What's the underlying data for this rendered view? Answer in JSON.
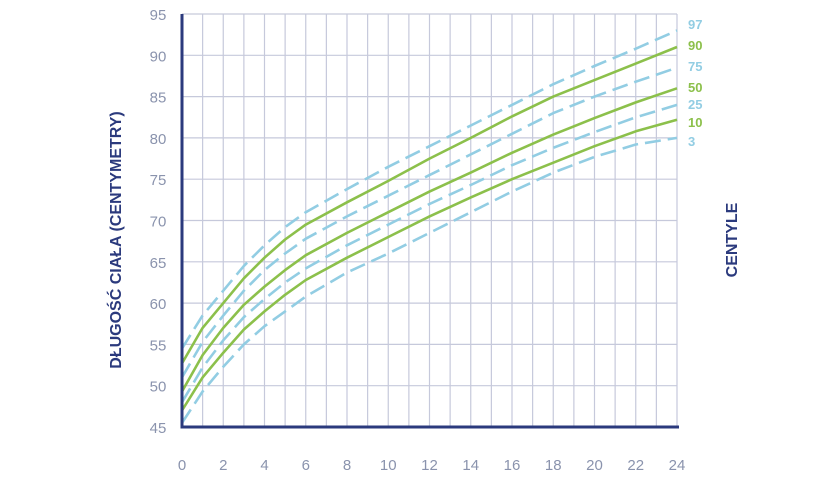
{
  "chart_data": {
    "type": "line",
    "title": "",
    "xlabel": "",
    "ylabel": "DŁUGOŚĆ CIAŁA (CENTYMETRY)",
    "right_label": "CENTYLE",
    "xlim": [
      0,
      24
    ],
    "ylim": [
      45,
      95
    ],
    "x_ticks": [
      0,
      2,
      4,
      6,
      8,
      10,
      12,
      14,
      16,
      18,
      20,
      22,
      24
    ],
    "y_ticks": [
      45,
      50,
      55,
      60,
      65,
      70,
      75,
      80,
      85,
      90,
      95
    ],
    "grid": true,
    "legend_position": "right",
    "colors": {
      "solid": "#8cc04b",
      "dashed": "#92cde3",
      "axis": "#2b3a7d",
      "grid": "#c6c9db"
    },
    "x": [
      0,
      1,
      2,
      3,
      4,
      5,
      6,
      8,
      10,
      12,
      14,
      16,
      18,
      20,
      22,
      24
    ],
    "series": [
      {
        "name": "97",
        "style": "dashed",
        "values": [
          54.5,
          58.5,
          61.5,
          64.5,
          67,
          69.2,
          71,
          73.8,
          76.5,
          79,
          81.5,
          84,
          86.5,
          88.7,
          90.8,
          93
        ]
      },
      {
        "name": "90",
        "style": "solid",
        "values": [
          52.7,
          57,
          60,
          63,
          65.5,
          67.7,
          69.5,
          72.2,
          74.8,
          77.5,
          80,
          82.6,
          85,
          87,
          89,
          91
        ]
      },
      {
        "name": "75",
        "style": "dashed",
        "values": [
          51,
          55.3,
          58.5,
          61.5,
          64,
          66,
          67.8,
          70.5,
          73,
          75.5,
          78,
          80.5,
          83,
          85,
          86.8,
          88.5
        ]
      },
      {
        "name": "50",
        "style": "solid",
        "values": [
          49.3,
          53.7,
          57,
          59.8,
          62,
          64,
          65.8,
          68.5,
          71,
          73.5,
          75.8,
          78.2,
          80.4,
          82.4,
          84.3,
          86
        ]
      },
      {
        "name": "25",
        "style": "dashed",
        "values": [
          48,
          52.2,
          55.5,
          58.3,
          60.5,
          62.5,
          64.2,
          67,
          69.5,
          72,
          74.3,
          76.7,
          78.8,
          80.7,
          82.5,
          84
        ]
      },
      {
        "name": "10",
        "style": "solid",
        "values": [
          47,
          51,
          54,
          56.8,
          59,
          61,
          62.8,
          65.5,
          68,
          70.5,
          72.8,
          75,
          77,
          79,
          80.8,
          82.2
        ]
      },
      {
        "name": "3",
        "style": "dashed",
        "values": [
          45.5,
          49.3,
          52.3,
          55,
          57.2,
          59,
          60.8,
          63.7,
          66,
          68.5,
          71,
          73.5,
          75.8,
          77.7,
          79.2,
          80
        ]
      }
    ],
    "legend": [
      {
        "label": "97",
        "color": "#92cde3"
      },
      {
        "label": "90",
        "color": "#8cc04b"
      },
      {
        "label": "75",
        "color": "#92cde3"
      },
      {
        "label": "50",
        "color": "#8cc04b"
      },
      {
        "label": "25",
        "color": "#92cde3"
      },
      {
        "label": "10",
        "color": "#8cc04b"
      },
      {
        "label": "3",
        "color": "#92cde3"
      }
    ]
  }
}
